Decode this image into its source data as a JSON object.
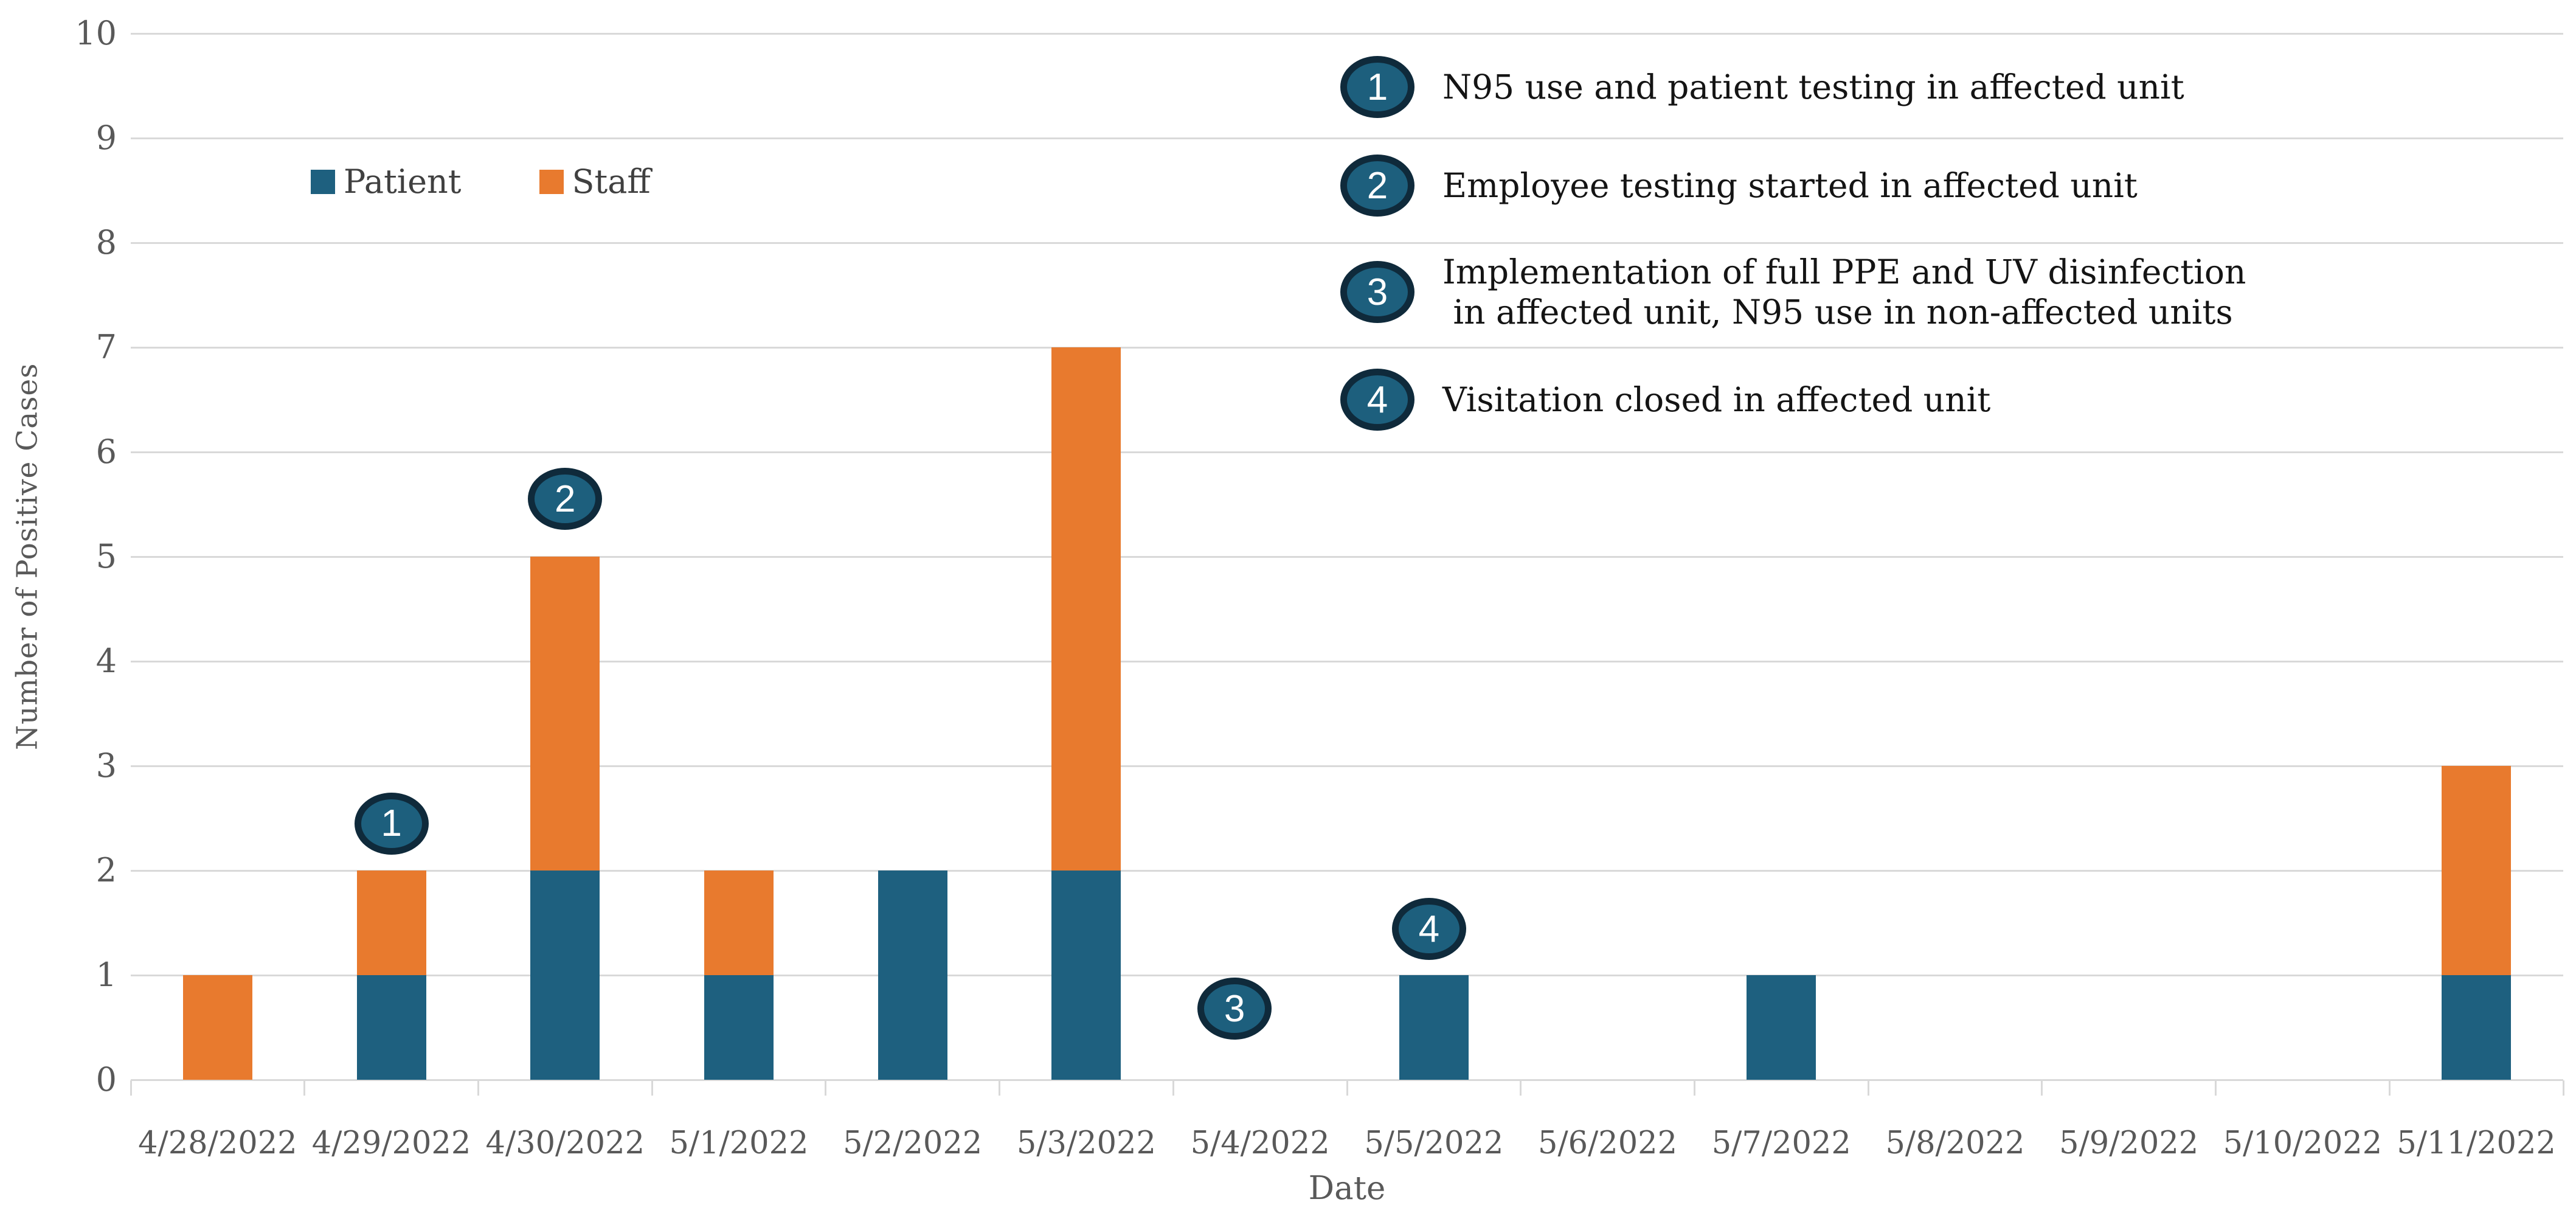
{
  "chart_data": {
    "type": "bar",
    "stacked": true,
    "title": "",
    "xlabel": "Date",
    "ylabel": "Number of Positive Cases",
    "ylim": [
      0,
      10
    ],
    "ytick_interval": 1,
    "yticks": [
      0,
      1,
      2,
      3,
      4,
      5,
      6,
      7,
      8,
      9,
      10
    ],
    "grid": true,
    "legend_position": "top-left-inset",
    "categories": [
      "4/28/2022",
      "4/29/2022",
      "4/30/2022",
      "5/1/2022",
      "5/2/2022",
      "5/3/2022",
      "5/4/2022",
      "5/5/2022",
      "5/6/2022",
      "5/7/2022",
      "5/8/2022",
      "5/9/2022",
      "5/10/2022",
      "5/11/2022"
    ],
    "series": [
      {
        "name": "Patient",
        "color": "#1E607F",
        "values": [
          0,
          1,
          2,
          1,
          2,
          2,
          0,
          1,
          0,
          1,
          0,
          0,
          0,
          1
        ]
      },
      {
        "name": "Staff",
        "color": "#E87A2E",
        "values": [
          1,
          1,
          3,
          1,
          0,
          5,
          0,
          0,
          0,
          0,
          0,
          0,
          0,
          2
        ]
      }
    ],
    "event_markers": [
      {
        "label": "1",
        "category_index": 1,
        "y": 2.45,
        "dx": 0
      },
      {
        "label": "2",
        "category_index": 2,
        "y": 5.55,
        "dx": 0
      },
      {
        "label": "3",
        "category_index": 6,
        "y": 0.68,
        "dx": -42
      },
      {
        "label": "4",
        "category_index": 7,
        "y": 1.44,
        "dx": -8
      }
    ],
    "annotations": [
      {
        "number": "1",
        "text": "N95 use and patient testing in affected unit"
      },
      {
        "number": "2",
        "text": "Employee testing started in affected unit"
      },
      {
        "number": "3",
        "text": "Implementation of full PPE and UV disinfection\n in affected unit, N95 use in non-affected units"
      },
      {
        "number": "4",
        "text": "Visitation closed in affected unit"
      }
    ]
  },
  "style": {
    "colors": {
      "patient": "#1E607F",
      "staff": "#E87A2E",
      "marker_fill": "#1D5F7D",
      "marker_border": "#0F2A3B",
      "gridline": "#D9D9D9",
      "axis_text": "#595959",
      "annotation_text": "#141414"
    }
  }
}
